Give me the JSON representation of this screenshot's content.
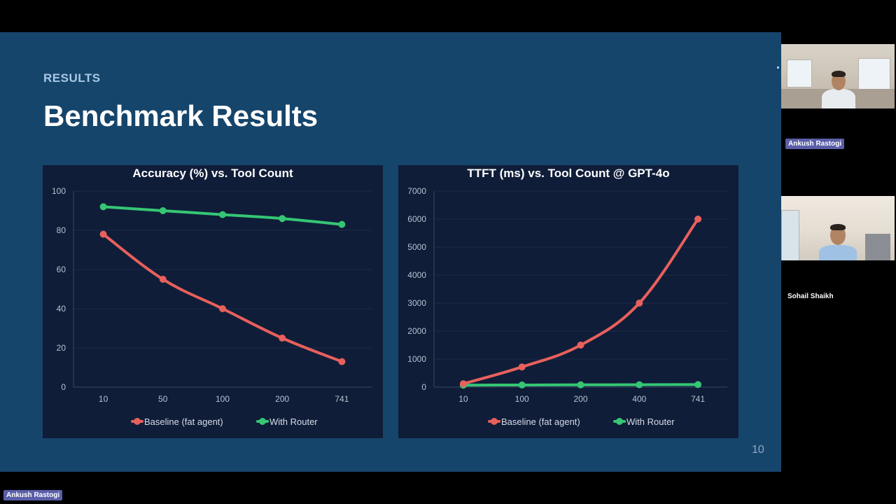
{
  "slide": {
    "eyebrow": "RESULTS",
    "title": "Benchmark Results",
    "page_number": "10"
  },
  "chart_data": [
    {
      "type": "line",
      "title": "Accuracy (%) vs. Tool Count",
      "categories": [
        "10",
        "50",
        "100",
        "200",
        "741"
      ],
      "ylim": [
        0,
        100
      ],
      "yticks": [
        0,
        20,
        40,
        60,
        80,
        100
      ],
      "grid": true,
      "legend_position": "bottom",
      "series": [
        {
          "name": "Baseline (fat agent)",
          "color": "#e8605c",
          "values": [
            78,
            55,
            40,
            25,
            13
          ]
        },
        {
          "name": "With Router",
          "color": "#35c674",
          "values": [
            92,
            90,
            88,
            86,
            83
          ]
        }
      ]
    },
    {
      "type": "line",
      "title": "TTFT (ms) vs. Tool Count @ GPT-4o",
      "categories": [
        "10",
        "100",
        "200",
        "400",
        "741"
      ],
      "ylim": [
        0,
        7000
      ],
      "yticks": [
        0,
        1000,
        2000,
        3000,
        4000,
        5000,
        6000,
        7000
      ],
      "grid": true,
      "legend_position": "bottom",
      "series": [
        {
          "name": "Baseline (fat agent)",
          "color": "#e8605c",
          "values": [
            120,
            720,
            1500,
            3000,
            6000
          ]
        },
        {
          "name": "With Router",
          "color": "#35c674",
          "values": [
            70,
            75,
            80,
            85,
            90
          ]
        }
      ]
    }
  ],
  "participants": [
    {
      "name": "Ankush Rastogi"
    },
    {
      "name": "Sohail Shaikh"
    }
  ],
  "active_speaker": {
    "name": "Ankush Rastogi"
  }
}
